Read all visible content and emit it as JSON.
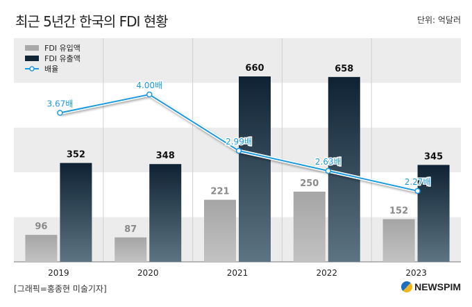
{
  "title": "최근 5년간 한국의 FDI 현황",
  "unit": "단위: 억달러",
  "credit": "[그래픽=홍종현 미술기자]",
  "logo": "NEWSPIM",
  "chart_data": {
    "type": "bar",
    "title": "최근 5년간 한국의 FDI 현황",
    "categories": [
      "2019",
      "2020",
      "2021",
      "2022",
      "2023"
    ],
    "series": [
      {
        "name": "FDI 유입액",
        "type": "bar",
        "values": [
          96,
          87,
          221,
          250,
          152
        ],
        "color": "#a9a9a9"
      },
      {
        "name": "FDI 유출액",
        "type": "bar",
        "values": [
          352,
          348,
          660,
          658,
          345
        ],
        "color": "#0f2536"
      },
      {
        "name": "배율",
        "type": "line",
        "values": [
          3.67,
          4.0,
          2.99,
          2.63,
          2.27
        ],
        "suffix": "배",
        "color": "#1a9ae0"
      }
    ],
    "ylabel": "억달러",
    "legend": "top-left"
  }
}
